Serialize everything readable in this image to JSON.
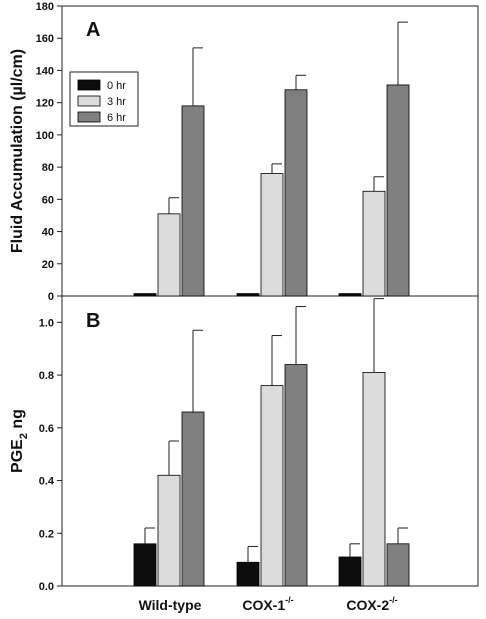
{
  "figure": {
    "categories": [
      "Wild-type",
      "COX-1",
      "COX-2"
    ],
    "category_superscript": "-/-",
    "legend": [
      "0 hr",
      "3 hr",
      "6 hr"
    ],
    "colors": {
      "0 hr": "#0d0d0d",
      "3 hr": "#dcdcdc",
      "6 hr": "#808080"
    }
  },
  "chart_data": [
    {
      "type": "bar",
      "panel_label": "A",
      "ylabel": "Fluid Accumulation (µl/cm)",
      "categories": [
        "Wild-type",
        "COX-1",
        "COX-2"
      ],
      "ylim": [
        0,
        180
      ],
      "yticks": [
        0,
        20,
        40,
        60,
        80,
        100,
        120,
        140,
        160,
        180
      ],
      "tick_labels": [
        "0",
        "20",
        "40",
        "60",
        "80",
        "100",
        "120",
        "140",
        "160",
        "180"
      ],
      "legend": "top-left",
      "series": [
        {
          "name": "0 hr",
          "values": [
            1.5,
            1.5,
            1.5
          ],
          "errors": [
            0,
            0,
            0
          ]
        },
        {
          "name": "3 hr",
          "values": [
            51,
            76,
            65
          ],
          "errors": [
            10,
            6,
            9
          ]
        },
        {
          "name": "6 hr",
          "values": [
            118,
            128,
            131
          ],
          "errors": [
            36,
            9,
            39
          ]
        }
      ]
    },
    {
      "type": "bar",
      "panel_label": "B",
      "ylabel": "PGE2 ng",
      "ylabel_main": "PGE",
      "ylabel_sub": "2",
      "ylabel_tail": " ng",
      "categories": [
        "Wild-type",
        "COX-1",
        "COX-2"
      ],
      "ylim": [
        0,
        1.1
      ],
      "yticks": [
        0,
        0.2,
        0.4,
        0.6,
        0.8,
        1.0
      ],
      "tick_labels": [
        "0.0",
        "0.2",
        "0.4",
        "0.6",
        "0.8",
        "1.0"
      ],
      "series": [
        {
          "name": "0 hr",
          "values": [
            0.16,
            0.09,
            0.11
          ],
          "errors": [
            0.06,
            0.06,
            0.05
          ]
        },
        {
          "name": "3 hr",
          "values": [
            0.42,
            0.76,
            0.81
          ],
          "errors": [
            0.13,
            0.19,
            0.28
          ]
        },
        {
          "name": "6 hr",
          "values": [
            0.66,
            0.84,
            0.16
          ],
          "errors": [
            0.31,
            0.22,
            0.06
          ]
        }
      ]
    }
  ]
}
